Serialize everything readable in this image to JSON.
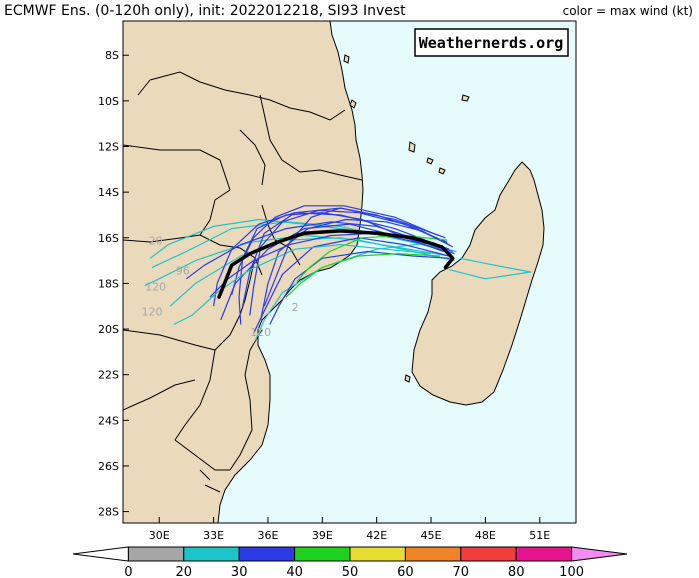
{
  "title": "ECMWF Ens. (0-120h only), init: 2022012218, SI93 Invest",
  "legend_title": "color = max wind (kt)",
  "watermark": "Weathernerds.org",
  "colors": {
    "ocean": "#e6fcfc",
    "land": "#ebd9bc",
    "border": "#000000",
    "mean_track": "#000000"
  },
  "map": {
    "lon_range": [
      28,
      53
    ],
    "lat_range": [
      -28.5,
      -6.5
    ],
    "lat_ticks": [
      {
        "v": -8,
        "label": "8S"
      },
      {
        "v": -10,
        "label": "10S"
      },
      {
        "v": -12,
        "label": "12S"
      },
      {
        "v": -14,
        "label": "14S"
      },
      {
        "v": -16,
        "label": "16S"
      },
      {
        "v": -18,
        "label": "18S"
      },
      {
        "v": -20,
        "label": "20S"
      },
      {
        "v": -22,
        "label": "22S"
      },
      {
        "v": -24,
        "label": "24S"
      },
      {
        "v": -26,
        "label": "26S"
      },
      {
        "v": -28,
        "label": "28S"
      }
    ],
    "lon_ticks": [
      {
        "v": 30,
        "label": "30E"
      },
      {
        "v": 33,
        "label": "33E"
      },
      {
        "v": 36,
        "label": "36E"
      },
      {
        "v": 39,
        "label": "39E"
      },
      {
        "v": 42,
        "label": "42E"
      },
      {
        "v": 45,
        "label": "45E"
      },
      {
        "v": 48,
        "label": "48E"
      },
      {
        "v": 51,
        "label": "51E"
      }
    ]
  },
  "track_labels": [
    {
      "text": "120",
      "lon": 29.8,
      "lat": -18.3
    },
    {
      "text": "120",
      "lon": 29.6,
      "lat": -19.4
    },
    {
      "text": "96",
      "lon": 31.3,
      "lat": -17.6
    },
    {
      "text": "120",
      "lon": 35.6,
      "lat": -20.3
    },
    {
      "text": "20",
      "lon": 29.8,
      "lat": -16.3
    },
    {
      "text": "2",
      "lon": 37.5,
      "lat": -19.2
    }
  ],
  "mean_track": [
    {
      "lon": 45.8,
      "lat": -17.3
    },
    {
      "lon": 46.2,
      "lat": -16.9
    },
    {
      "lon": 45.6,
      "lat": -16.4
    },
    {
      "lon": 44.0,
      "lat": -16.0
    },
    {
      "lon": 42.0,
      "lat": -15.8
    },
    {
      "lon": 40.0,
      "lat": -15.7
    },
    {
      "lon": 38.0,
      "lat": -15.8
    },
    {
      "lon": 36.5,
      "lat": -16.2
    },
    {
      "lon": 35.0,
      "lat": -16.7
    },
    {
      "lon": 34.0,
      "lat": -17.2
    },
    {
      "lon": 33.5,
      "lat": -18.2
    },
    {
      "lon": 33.3,
      "lat": -18.6
    }
  ],
  "ensemble_tracks": [
    {
      "color": "#1cc5c8",
      "points": [
        {
          "lon": 46.4,
          "lat": -16.6
        },
        {
          "lon": 44,
          "lat": -16.2
        },
        {
          "lon": 41,
          "lat": -15.7
        },
        {
          "lon": 38,
          "lat": -15.4
        },
        {
          "lon": 35.5,
          "lat": -15.2
        },
        {
          "lon": 33,
          "lat": -15.5
        },
        {
          "lon": 30.5,
          "lat": -16.3
        },
        {
          "lon": 29.5,
          "lat": -16.9
        }
      ]
    },
    {
      "color": "#1cc5c8",
      "points": [
        {
          "lon": 46.3,
          "lat": -17.0
        },
        {
          "lon": 44,
          "lat": -16.6
        },
        {
          "lon": 41,
          "lat": -16.1
        },
        {
          "lon": 38,
          "lat": -15.9
        },
        {
          "lon": 35,
          "lat": -16.2
        },
        {
          "lon": 32,
          "lat": -17.0
        },
        {
          "lon": 30,
          "lat": -17.8
        },
        {
          "lon": 29.2,
          "lat": -18.1
        }
      ]
    },
    {
      "color": "#1cc5c8",
      "points": [
        {
          "lon": 46.0,
          "lat": -16.8
        },
        {
          "lon": 43,
          "lat": -16.4
        },
        {
          "lon": 40,
          "lat": -16.0
        },
        {
          "lon": 37,
          "lat": -16.1
        },
        {
          "lon": 34.5,
          "lat": -16.8
        },
        {
          "lon": 32,
          "lat": -18.0
        },
        {
          "lon": 30.6,
          "lat": -19.0
        }
      ]
    },
    {
      "color": "#1cc5c8",
      "points": [
        {
          "lon": 45.5,
          "lat": -16.5
        },
        {
          "lon": 43,
          "lat": -16.0
        },
        {
          "lon": 40,
          "lat": -15.5
        },
        {
          "lon": 37,
          "lat": -15.3
        },
        {
          "lon": 34,
          "lat": -15.6
        },
        {
          "lon": 31.5,
          "lat": -16.6
        },
        {
          "lon": 29.6,
          "lat": -17.3
        }
      ]
    },
    {
      "color": "#1cc5c8",
      "points": [
        {
          "lon": 46.6,
          "lat": -16.9
        },
        {
          "lon": 48.5,
          "lat": -17.2
        },
        {
          "lon": 50.5,
          "lat": -17.5
        },
        {
          "lon": 48,
          "lat": -17.8
        },
        {
          "lon": 46,
          "lat": -17.4
        }
      ]
    },
    {
      "color": "#1cc5c8",
      "points": [
        {
          "lon": 45.2,
          "lat": -16.2
        },
        {
          "lon": 42,
          "lat": -16.5
        },
        {
          "lon": 39,
          "lat": -17.3
        },
        {
          "lon": 36.8,
          "lat": -18.4
        },
        {
          "lon": 35.8,
          "lat": -19.6
        },
        {
          "lon": 35.3,
          "lat": -20.5
        }
      ]
    },
    {
      "color": "#2b3ce6",
      "points": [
        {
          "lon": 46.0,
          "lat": -16.5
        },
        {
          "lon": 43,
          "lat": -15.6
        },
        {
          "lon": 40,
          "lat": -15.0
        },
        {
          "lon": 37.5,
          "lat": -14.9
        },
        {
          "lon": 35.5,
          "lat": -15.4
        },
        {
          "lon": 34,
          "lat": -16.5
        },
        {
          "lon": 33.2,
          "lat": -18.0
        },
        {
          "lon": 33.0,
          "lat": -19.0
        }
      ]
    },
    {
      "color": "#2b3ce6",
      "points": [
        {
          "lon": 45.8,
          "lat": -16.0
        },
        {
          "lon": 43,
          "lat": -15.2
        },
        {
          "lon": 40,
          "lat": -14.7
        },
        {
          "lon": 37.5,
          "lat": -14.9
        },
        {
          "lon": 35.8,
          "lat": -15.8
        },
        {
          "lon": 35,
          "lat": -17.5
        },
        {
          "lon": 34.6,
          "lat": -19.0
        }
      ]
    },
    {
      "color": "#2b3ce6",
      "points": [
        {
          "lon": 46.0,
          "lat": -16.8
        },
        {
          "lon": 43.5,
          "lat": -16.3
        },
        {
          "lon": 41,
          "lat": -16.0
        },
        {
          "lon": 38.5,
          "lat": -16.4
        },
        {
          "lon": 36.8,
          "lat": -17.6
        },
        {
          "lon": 35.8,
          "lat": -19.2
        },
        {
          "lon": 35.2,
          "lat": -20.2
        }
      ]
    },
    {
      "color": "#2b3ce6",
      "points": [
        {
          "lon": 45.6,
          "lat": -16.4
        },
        {
          "lon": 43,
          "lat": -15.9
        },
        {
          "lon": 40.5,
          "lat": -15.4
        },
        {
          "lon": 38,
          "lat": -15.6
        },
        {
          "lon": 36,
          "lat": -16.5
        },
        {
          "lon": 34.2,
          "lat": -18.0
        },
        {
          "lon": 33.4,
          "lat": -19.6
        }
      ]
    },
    {
      "color": "#2b3ce6",
      "points": [
        {
          "lon": 46.2,
          "lat": -16.6
        },
        {
          "lon": 44,
          "lat": -16.0
        },
        {
          "lon": 42,
          "lat": -15.5
        },
        {
          "lon": 39.5,
          "lat": -15.3
        },
        {
          "lon": 37,
          "lat": -15.6
        },
        {
          "lon": 34.5,
          "lat": -16.3
        },
        {
          "lon": 32.5,
          "lat": -17.2
        },
        {
          "lon": 31.5,
          "lat": -17.8
        }
      ]
    },
    {
      "color": "#2b3ce6",
      "points": [
        {
          "lon": 45.9,
          "lat": -16.2
        },
        {
          "lon": 43.5,
          "lat": -15.4
        },
        {
          "lon": 41,
          "lat": -14.9
        },
        {
          "lon": 38.8,
          "lat": -14.8
        },
        {
          "lon": 36.8,
          "lat": -15.3
        },
        {
          "lon": 35.6,
          "lat": -16.4
        },
        {
          "lon": 35.2,
          "lat": -18.2
        },
        {
          "lon": 35.0,
          "lat": -19.4
        }
      ]
    },
    {
      "color": "#2b3ce6",
      "points": [
        {
          "lon": 46.1,
          "lat": -16.9
        },
        {
          "lon": 44,
          "lat": -16.8
        },
        {
          "lon": 41.5,
          "lat": -16.6
        },
        {
          "lon": 39,
          "lat": -16.9
        },
        {
          "lon": 37.5,
          "lat": -17.8
        },
        {
          "lon": 36.6,
          "lat": -19.0
        },
        {
          "lon": 36.1,
          "lat": -19.8
        }
      ]
    },
    {
      "color": "#2b3ce6",
      "points": [
        {
          "lon": 45.4,
          "lat": -15.9
        },
        {
          "lon": 43,
          "lat": -15.1
        },
        {
          "lon": 40.2,
          "lat": -14.6
        },
        {
          "lon": 38,
          "lat": -14.6
        },
        {
          "lon": 36.4,
          "lat": -15.1
        },
        {
          "lon": 35.2,
          "lat": -16.0
        },
        {
          "lon": 34.4,
          "lat": -17.3
        },
        {
          "lon": 34.0,
          "lat": -18.5
        }
      ]
    },
    {
      "color": "#2b3ce6",
      "points": [
        {
          "lon": 46.3,
          "lat": -16.7
        },
        {
          "lon": 44.2,
          "lat": -16.2
        },
        {
          "lon": 42,
          "lat": -15.8
        },
        {
          "lon": 39.5,
          "lat": -15.9
        },
        {
          "lon": 37.2,
          "lat": -16.3
        },
        {
          "lon": 35.2,
          "lat": -17.0
        },
        {
          "lon": 33.8,
          "lat": -17.8
        },
        {
          "lon": 32.8,
          "lat": -18.6
        }
      ]
    },
    {
      "color": "#2b3ce6",
      "points": [
        {
          "lon": 45.7,
          "lat": -16.6
        },
        {
          "lon": 43.6,
          "lat": -16.0
        },
        {
          "lon": 41.2,
          "lat": -15.2
        },
        {
          "lon": 39,
          "lat": -14.9
        },
        {
          "lon": 37,
          "lat": -15.0
        },
        {
          "lon": 35.4,
          "lat": -15.6
        },
        {
          "lon": 34.6,
          "lat": -16.9
        },
        {
          "lon": 34.4,
          "lat": -18.6
        },
        {
          "lon": 34.5,
          "lat": -19.8
        }
      ]
    },
    {
      "color": "#2b3ce6",
      "points": [
        {
          "lon": 46.0,
          "lat": -16.3
        },
        {
          "lon": 44.5,
          "lat": -15.7
        },
        {
          "lon": 42.5,
          "lat": -15.3
        },
        {
          "lon": 40.3,
          "lat": -15.2
        },
        {
          "lon": 38.2,
          "lat": -15.6
        },
        {
          "lon": 36.6,
          "lat": -16.6
        },
        {
          "lon": 36.0,
          "lat": -18.0
        },
        {
          "lon": 35.6,
          "lat": -19.6
        }
      ]
    },
    {
      "color": "#1fd21f",
      "points": [
        {
          "lon": 45.5,
          "lat": -16.8
        },
        {
          "lon": 43.2,
          "lat": -16.7
        },
        {
          "lon": 41,
          "lat": -16.8
        },
        {
          "lon": 39,
          "lat": -17.3
        },
        {
          "lon": 37.8,
          "lat": -18.0
        },
        {
          "lon": 37.0,
          "lat": -18.6
        }
      ]
    },
    {
      "color": "#1fd21f",
      "points": [
        {
          "lon": 45.9,
          "lat": -16.1
        },
        {
          "lon": 43.5,
          "lat": -15.9
        },
        {
          "lon": 41.2,
          "lat": -16.0
        },
        {
          "lon": 39.4,
          "lat": -16.6
        },
        {
          "lon": 38.3,
          "lat": -17.3
        },
        {
          "lon": 37.6,
          "lat": -17.9
        }
      ]
    },
    {
      "color": "#1cc5c8",
      "points": [
        {
          "lon": 45.0,
          "lat": -16.7
        },
        {
          "lon": 42.5,
          "lat": -16.5
        },
        {
          "lon": 40,
          "lat": -16.3
        },
        {
          "lon": 37.5,
          "lat": -16.5
        },
        {
          "lon": 35,
          "lat": -17.4
        },
        {
          "lon": 33.2,
          "lat": -18.4
        },
        {
          "lon": 31.8,
          "lat": -19.4
        },
        {
          "lon": 30.8,
          "lat": -19.8
        }
      ]
    },
    {
      "color": "#2b3ce6",
      "points": [
        {
          "lon": 46.2,
          "lat": -16.4
        },
        {
          "lon": 44.2,
          "lat": -15.6
        },
        {
          "lon": 42,
          "lat": -15.0
        },
        {
          "lon": 40,
          "lat": -14.7
        },
        {
          "lon": 38.4,
          "lat": -15.1
        },
        {
          "lon": 37.2,
          "lat": -16.2
        },
        {
          "lon": 36.4,
          "lat": -17.8
        },
        {
          "lon": 35.8,
          "lat": -19.0
        }
      ]
    }
  ],
  "colorbar": {
    "labels": [
      "0",
      "20",
      "30",
      "40",
      "50",
      "60",
      "70",
      "80",
      "100"
    ],
    "bins": [
      {
        "color": "#ffffff"
      },
      {
        "color": "#a6a6a6"
      },
      {
        "color": "#1cc5c8"
      },
      {
        "color": "#2b3ce6"
      },
      {
        "color": "#1fd21f"
      },
      {
        "color": "#e6dc32"
      },
      {
        "color": "#f08228"
      },
      {
        "color": "#f03c3c"
      },
      {
        "color": "#e6148c"
      },
      {
        "color": "#f58cf0"
      }
    ]
  }
}
